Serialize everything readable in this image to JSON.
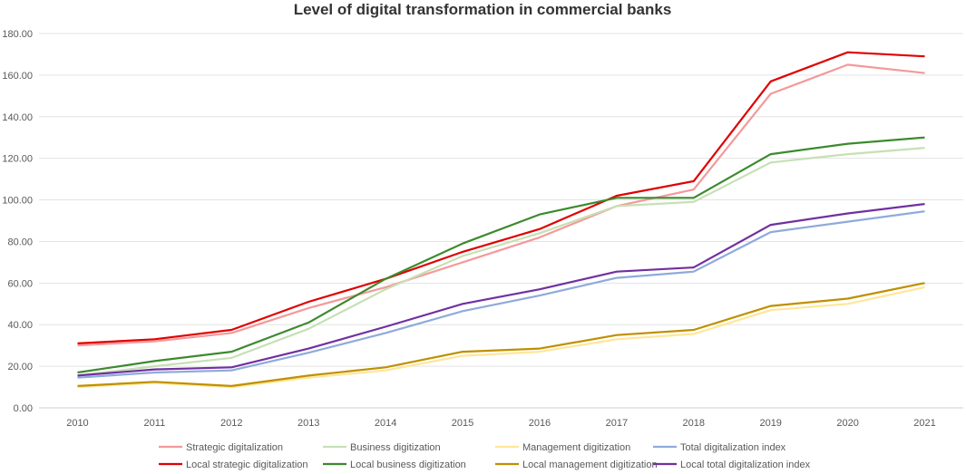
{
  "chart_data": {
    "type": "line",
    "title": "Level of digital transformation in commercial banks",
    "xlabel": "",
    "ylabel": "",
    "ylim": [
      0,
      180
    ],
    "yticks": [
      "0.00",
      "20.00",
      "40.00",
      "60.00",
      "80.00",
      "100.00",
      "120.00",
      "140.00",
      "160.00",
      "180.00"
    ],
    "grid": true,
    "legend_position": "bottom",
    "categories": [
      "2010",
      "2011",
      "2012",
      "2013",
      "2014",
      "2015",
      "2016",
      "2017",
      "2018",
      "2019",
      "2020",
      "2021"
    ],
    "series": [
      {
        "name": "Strategic digitalization",
        "color": "#f4999a",
        "values": [
          30,
          32,
          36,
          48,
          58,
          70,
          82,
          97,
          105,
          151,
          165,
          161
        ]
      },
      {
        "name": "Business digitization",
        "color": "#c6e0b4",
        "values": [
          15.5,
          20,
          24,
          38,
          57,
          73,
          84,
          97,
          99,
          118,
          122,
          125
        ]
      },
      {
        "name": "Management digitization",
        "color": "#ffe699",
        "values": [
          10,
          12,
          10,
          14.5,
          18,
          25,
          27,
          33,
          35.5,
          47,
          50,
          58
        ]
      },
      {
        "name": "Total digitalization index",
        "color": "#8eaadb",
        "values": [
          14.5,
          17,
          18,
          26.5,
          36,
          46.5,
          54,
          62.5,
          65.5,
          84.5,
          89.5,
          94.5
        ]
      },
      {
        "name": "Local strategic digitalization",
        "color": "#e00000",
        "values": [
          31,
          33,
          37.5,
          51,
          62,
          75,
          86,
          102,
          109,
          157,
          171,
          169
        ]
      },
      {
        "name": "Local business digitization",
        "color": "#3c8a2e",
        "values": [
          17,
          22.5,
          27,
          41,
          62,
          79,
          93,
          101,
          101,
          122,
          127,
          130
        ]
      },
      {
        "name": "Local management digitization",
        "color": "#bf9000",
        "values": [
          10.5,
          12.5,
          10.5,
          15.5,
          19.5,
          27,
          28.5,
          35,
          37.5,
          49,
          52.5,
          60
        ]
      },
      {
        "name": "Local total digitalization index",
        "color": "#7030a0",
        "values": [
          15.5,
          18.5,
          19.5,
          28.5,
          39,
          50,
          57,
          65.5,
          67.5,
          88,
          93.5,
          98
        ]
      }
    ]
  }
}
